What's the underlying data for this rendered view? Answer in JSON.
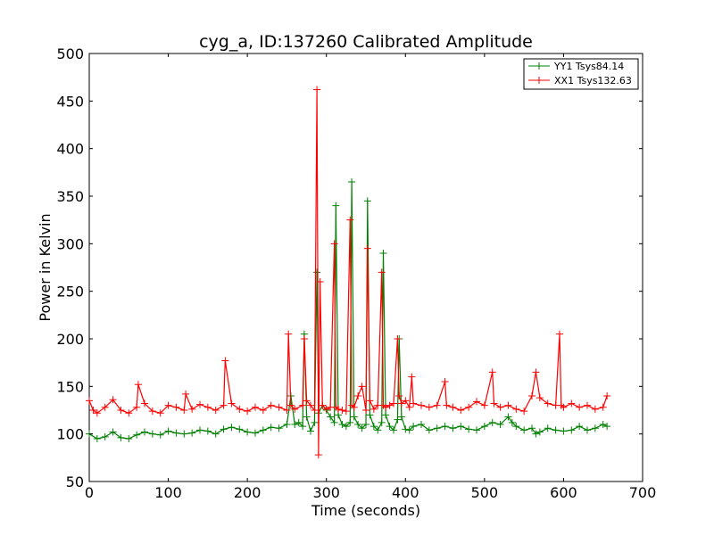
{
  "chart_data": {
    "type": "line",
    "title": "cyg_a, ID:137260 Calibrated Amplitude",
    "xlabel": "Time (seconds)",
    "ylabel": "Power in Kelvin",
    "xlim": [
      0,
      700
    ],
    "ylim": [
      50,
      500
    ],
    "xticks": [
      0,
      100,
      200,
      300,
      400,
      500,
      600,
      700
    ],
    "yticks": [
      50,
      100,
      150,
      200,
      250,
      300,
      350,
      400,
      450,
      500
    ],
    "grid": false,
    "legend_position": "top-right",
    "marker": "+",
    "series": [
      {
        "name": "YY1 Tsys84.14",
        "color": "#008000",
        "x": [
          0,
          10,
          20,
          30,
          40,
          50,
          60,
          70,
          80,
          90,
          100,
          110,
          120,
          130,
          140,
          150,
          160,
          170,
          180,
          190,
          200,
          210,
          220,
          230,
          240,
          250,
          255,
          260,
          265,
          270,
          272,
          275,
          280,
          285,
          288,
          290,
          295,
          300,
          305,
          310,
          312,
          315,
          320,
          325,
          330,
          332,
          335,
          340,
          345,
          350,
          352,
          355,
          360,
          365,
          370,
          372,
          375,
          380,
          385,
          390,
          392,
          395,
          400,
          405,
          410,
          420,
          430,
          440,
          450,
          460,
          470,
          480,
          490,
          500,
          510,
          520,
          530,
          535,
          540,
          550,
          560,
          565,
          570,
          580,
          590,
          600,
          610,
          620,
          630,
          640,
          650,
          655
        ],
        "y": [
          100,
          95,
          97,
          102,
          96,
          95,
          99,
          102,
          100,
          99,
          103,
          101,
          100,
          101,
          104,
          103,
          100,
          105,
          107,
          105,
          102,
          101,
          104,
          107,
          106,
          110,
          140,
          110,
          112,
          108,
          205,
          118,
          103,
          112,
          270,
          122,
          130,
          125,
          118,
          112,
          340,
          120,
          110,
          108,
          112,
          365,
          118,
          110,
          106,
          110,
          345,
          120,
          108,
          104,
          112,
          290,
          120,
          108,
          104,
          115,
          200,
          118,
          105,
          104,
          108,
          110,
          104,
          106,
          108,
          106,
          108,
          105,
          104,
          108,
          112,
          110,
          118,
          112,
          108,
          104,
          106,
          100,
          102,
          106,
          104,
          103,
          104,
          108,
          104,
          106,
          110,
          108
        ]
      },
      {
        "name": "XX1 Tsys132.63",
        "color": "#ff0000",
        "x": [
          0,
          5,
          10,
          20,
          30,
          40,
          50,
          60,
          62,
          70,
          80,
          90,
          100,
          110,
          120,
          122,
          130,
          140,
          150,
          160,
          170,
          172,
          180,
          190,
          200,
          210,
          220,
          230,
          240,
          250,
          252,
          255,
          260,
          270,
          272,
          275,
          280,
          285,
          288,
          290,
          292,
          295,
          300,
          305,
          310,
          312,
          315,
          320,
          325,
          330,
          332,
          335,
          340,
          345,
          350,
          352,
          355,
          360,
          365,
          370,
          372,
          375,
          380,
          385,
          390,
          392,
          395,
          400,
          405,
          408,
          410,
          420,
          430,
          440,
          450,
          452,
          460,
          470,
          480,
          490,
          500,
          510,
          512,
          520,
          530,
          540,
          550,
          560,
          565,
          570,
          580,
          590,
          595,
          597,
          600,
          610,
          620,
          630,
          640,
          650,
          655
        ],
        "y": [
          135,
          125,
          122,
          128,
          136,
          125,
          122,
          128,
          152,
          132,
          124,
          122,
          130,
          128,
          125,
          142,
          126,
          131,
          128,
          125,
          130,
          177,
          132,
          126,
          124,
          128,
          125,
          130,
          128,
          125,
          205,
          130,
          126,
          130,
          200,
          135,
          130,
          125,
          462,
          78,
          260,
          130,
          126,
          128,
          300,
          128,
          126,
          125,
          124,
          325,
          130,
          128,
          140,
          150,
          125,
          295,
          135,
          126,
          130,
          270,
          130,
          128,
          130,
          132,
          200,
          140,
          132,
          135,
          128,
          160,
          132,
          130,
          128,
          130,
          155,
          130,
          128,
          125,
          128,
          134,
          130,
          165,
          132,
          128,
          130,
          126,
          124,
          140,
          165,
          138,
          132,
          130,
          205,
          130,
          128,
          132,
          128,
          130,
          126,
          128,
          140
        ]
      }
    ]
  }
}
